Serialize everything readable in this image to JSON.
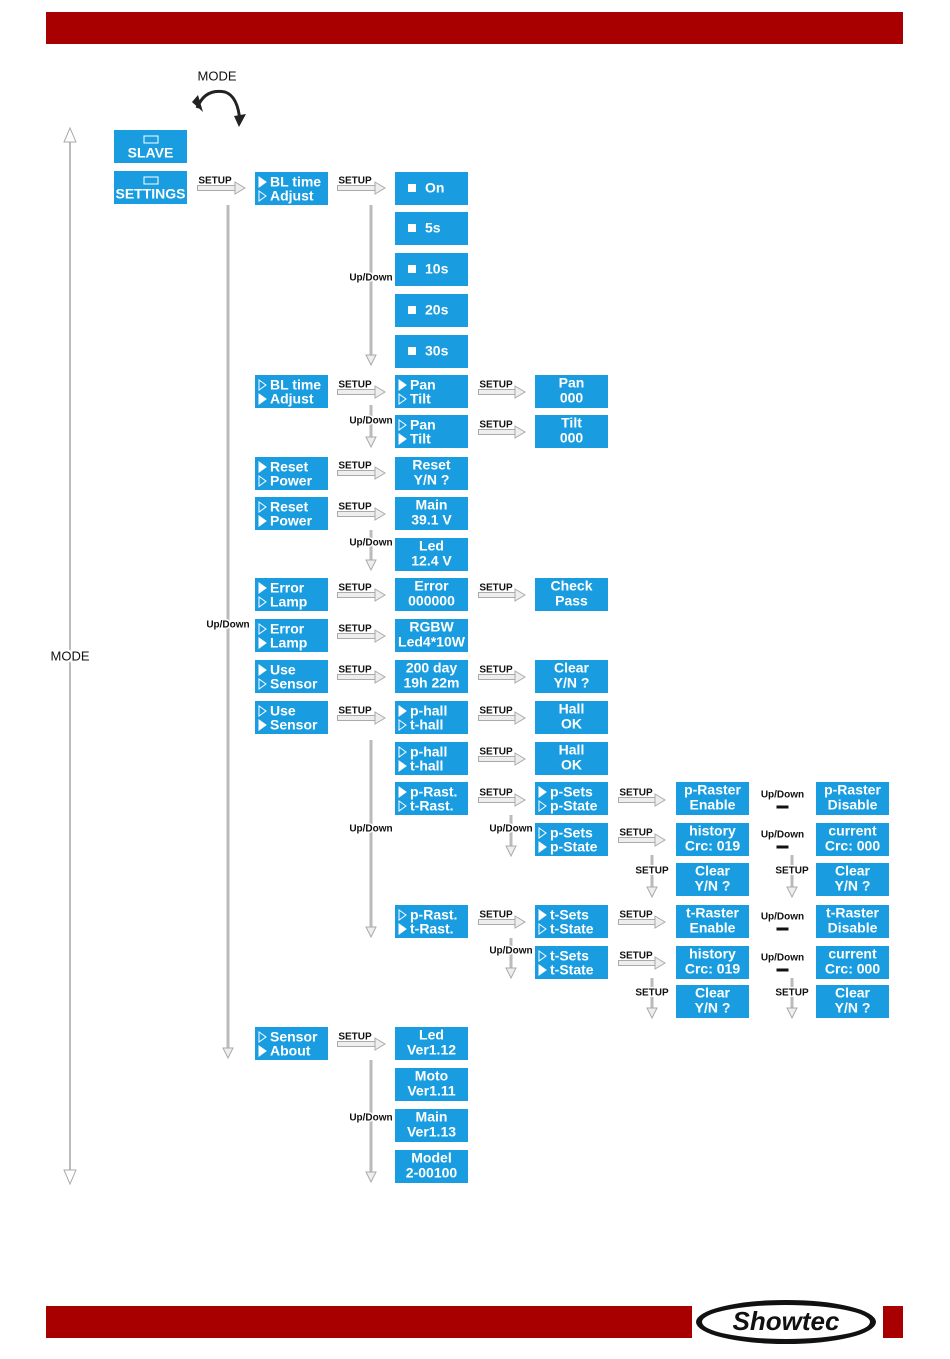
{
  "mode_top": "MODE",
  "mode_side": "MODE",
  "brand": "Showtec",
  "nodes": [
    {
      "lines": [
        "SLAVE"
      ]
    },
    {
      "lines": [
        "SETTINGS"
      ]
    },
    {
      "lines": [
        "BL time",
        "Adjust"
      ]
    },
    {
      "lines": [
        "On"
      ]
    },
    {
      "lines": [
        "5s"
      ]
    },
    {
      "lines": [
        "10s"
      ]
    },
    {
      "lines": [
        "20s"
      ]
    },
    {
      "lines": [
        "30s"
      ]
    },
    {
      "lines": [
        "BL time",
        "Adjust"
      ]
    },
    {
      "lines": [
        "Pan",
        "Tilt"
      ]
    },
    {
      "lines": [
        "Pan",
        "000"
      ]
    },
    {
      "lines": [
        "Pan",
        "Tilt"
      ]
    },
    {
      "lines": [
        "Tilt",
        "000"
      ]
    },
    {
      "lines": [
        "Reset",
        "Power"
      ]
    },
    {
      "lines": [
        "Reset",
        "Y/N ?"
      ]
    },
    {
      "lines": [
        "Reset",
        "Power"
      ]
    },
    {
      "lines": [
        "Main",
        "39.1 V"
      ]
    },
    {
      "lines": [
        "Led",
        "12.4 V"
      ]
    },
    {
      "lines": [
        "Error",
        "Lamp"
      ]
    },
    {
      "lines": [
        "Error",
        "000000"
      ]
    },
    {
      "lines": [
        "Check",
        "Pass"
      ]
    },
    {
      "lines": [
        "Error",
        "Lamp"
      ]
    },
    {
      "lines": [
        "RGBW",
        "Led4*10W"
      ]
    },
    {
      "lines": [
        "Use",
        "Sensor"
      ]
    },
    {
      "lines": [
        "200 day",
        "19h 22m"
      ]
    },
    {
      "lines": [
        "Clear",
        "Y/N ?"
      ]
    },
    {
      "lines": [
        "Use",
        "Sensor"
      ]
    },
    {
      "lines": [
        "p-hall",
        "t-hall"
      ]
    },
    {
      "lines": [
        "Hall",
        "OK"
      ]
    },
    {
      "lines": [
        "p-hall",
        "t-hall"
      ]
    },
    {
      "lines": [
        "Hall",
        "OK"
      ]
    },
    {
      "lines": [
        "p-Rast.",
        "t-Rast."
      ]
    },
    {
      "lines": [
        "p-Sets",
        "p-State"
      ]
    },
    {
      "lines": [
        "p-Raster",
        "Enable"
      ]
    },
    {
      "lines": [
        "p-Raster",
        "Disable"
      ]
    },
    {
      "lines": [
        "p-Sets",
        "p-State"
      ]
    },
    {
      "lines": [
        "history",
        "Crc: 019"
      ]
    },
    {
      "lines": [
        "current",
        "Crc: 000"
      ]
    },
    {
      "lines": [
        "Clear",
        "Y/N ?"
      ]
    },
    {
      "lines": [
        "Clear",
        "Y/N ?"
      ]
    },
    {
      "lines": [
        "p-Rast.",
        "t-Rast."
      ]
    },
    {
      "lines": [
        "t-Sets",
        "t-State"
      ]
    },
    {
      "lines": [
        "t-Raster",
        "Enable"
      ]
    },
    {
      "lines": [
        "t-Raster",
        "Disable"
      ]
    },
    {
      "lines": [
        "t-Sets",
        "t-State"
      ]
    },
    {
      "lines": [
        "history",
        "Crc: 019"
      ]
    },
    {
      "lines": [
        "current",
        "Crc: 000"
      ]
    },
    {
      "lines": [
        "Clear",
        "Y/N ?"
      ]
    },
    {
      "lines": [
        "Clear",
        "Y/N ?"
      ]
    },
    {
      "lines": [
        "Sensor",
        "About"
      ]
    },
    {
      "lines": [
        "Led",
        "Ver1.12"
      ]
    },
    {
      "lines": [
        "Moto",
        "Ver1.11"
      ]
    },
    {
      "lines": [
        "Main",
        "Ver1.13"
      ]
    },
    {
      "lines": [
        "Model",
        "2-00100"
      ]
    }
  ],
  "connectors": [
    "SETUP",
    "SETUP",
    "Up/Down",
    "SETUP",
    "SETUP",
    "Up/Down",
    "SETUP",
    "SETUP",
    "SETUP",
    "Up/Down",
    "SETUP",
    "SETUP",
    "Up/Down",
    "SETUP",
    "SETUP",
    "SETUP",
    "SETUP",
    "SETUP",
    "SETUP",
    "SETUP",
    "SETUP",
    "Up/Down",
    "Up/Down",
    "Up/Down",
    "SETUP",
    "Up/Down",
    "SETUP",
    "SETUP",
    "SETUP",
    "SETUP",
    "Up/Down",
    "Up/Down",
    "SETUP",
    "Up/Down",
    "SETUP",
    "SETUP",
    "SETUP",
    "Up/Down"
  ]
}
